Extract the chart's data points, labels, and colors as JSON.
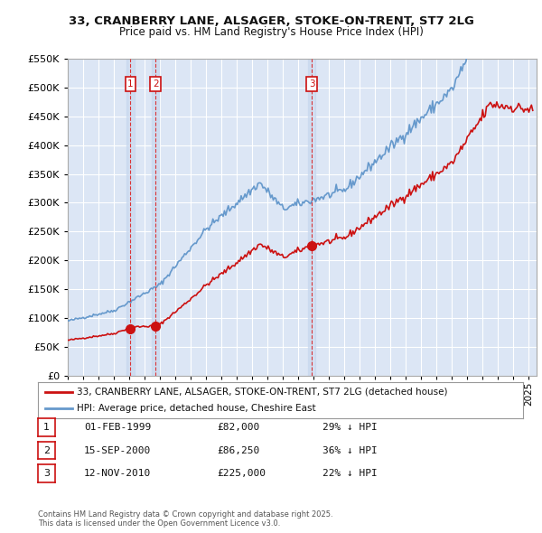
{
  "title1": "33, CRANBERRY LANE, ALSAGER, STOKE-ON-TRENT, ST7 2LG",
  "title2": "Price paid vs. HM Land Registry's House Price Index (HPI)",
  "ylim": [
    0,
    550000
  ],
  "yticks": [
    0,
    50000,
    100000,
    150000,
    200000,
    250000,
    300000,
    350000,
    400000,
    450000,
    500000,
    550000
  ],
  "xlim_start": 1995.0,
  "xlim_end": 2025.5,
  "plot_bg": "#dce6f5",
  "grid_color": "#ffffff",
  "sale_color": "#cc1111",
  "hpi_color": "#6699cc",
  "hpi_fill_color": "#c5d8f0",
  "vband_color": "#c5d8f0",
  "transactions": [
    {
      "date": 1999.08,
      "price": 82000,
      "label": "1"
    },
    {
      "date": 2000.71,
      "price": 86250,
      "label": "2"
    },
    {
      "date": 2010.87,
      "price": 225000,
      "label": "3"
    }
  ],
  "legend_sale": "33, CRANBERRY LANE, ALSAGER, STOKE-ON-TRENT, ST7 2LG (detached house)",
  "legend_hpi": "HPI: Average price, detached house, Cheshire East",
  "table_rows": [
    {
      "num": "1",
      "date": "01-FEB-1999",
      "price": "£82,000",
      "note": "29% ↓ HPI"
    },
    {
      "num": "2",
      "date": "15-SEP-2000",
      "price": "£86,250",
      "note": "36% ↓ HPI"
    },
    {
      "num": "3",
      "date": "12-NOV-2010",
      "price": "£225,000",
      "note": "22% ↓ HPI"
    }
  ],
  "footer": "Contains HM Land Registry data © Crown copyright and database right 2025.\nThis data is licensed under the Open Government Licence v3.0."
}
